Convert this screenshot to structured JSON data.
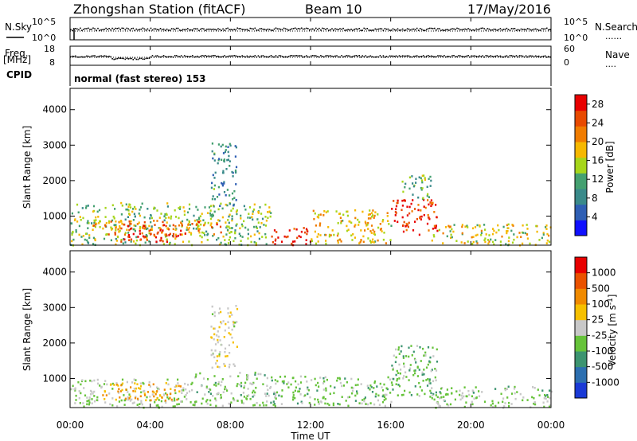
{
  "header": {
    "station": "Zhongshan Station (fitACF)",
    "beam": "Beam 10",
    "date": "17/May/2016"
  },
  "aux": {
    "nsky_label": "N.Sky",
    "nsearch_label": "N.Search",
    "freq_label": "Freq.",
    "freq_unit": "[MHz]",
    "nave_label": "Nave",
    "cpid_label": "CPID",
    "cpid_text": "normal (fast stereo) 153",
    "noise_ticks_left": [
      "10^5",
      "10^0"
    ],
    "noise_ticks_right": [
      "10^5",
      "10^0"
    ],
    "freq_ticks": [
      "18",
      "8"
    ],
    "nave_ticks": [
      "60",
      "0"
    ],
    "dotted_legend": "......",
    "dotted_legend_short": "...."
  },
  "xaxis": {
    "label": "Time UT",
    "ticks": [
      "00:00",
      "04:00",
      "08:00",
      "12:00",
      "16:00",
      "20:00",
      "00:00"
    ]
  },
  "chart_data": [
    {
      "type": "heatmap",
      "title": "",
      "quantity": "Power",
      "xlabel": "Time UT",
      "ylabel": "Slant Range [km]",
      "xlim_hours": [
        0,
        24
      ],
      "ylim_km": [
        180,
        4600
      ],
      "yticks": [
        "1000",
        "2000",
        "3000",
        "4000"
      ],
      "colorbar": {
        "label": "Power [dB]",
        "ticks": [
          "4",
          "8",
          "12",
          "16",
          "20",
          "24",
          "28"
        ],
        "range": [
          0,
          30
        ],
        "colors": [
          "#1010ff",
          "#2f5fb4",
          "#3a8a8a",
          "#44a070",
          "#a6d61a",
          "#f6b800",
          "#f07c00",
          "#e84a00",
          "#e80000"
        ]
      },
      "scatter_regions": [
        {
          "t": [
            0.0,
            10.0
          ],
          "r": [
            200,
            1400
          ],
          "level": 14
        },
        {
          "t": [
            1.0,
            7.5
          ],
          "r": [
            500,
            900
          ],
          "level": 22
        },
        {
          "t": [
            2.5,
            5.5
          ],
          "r": [
            300,
            800
          ],
          "level": 28
        },
        {
          "t": [
            7.0,
            8.3
          ],
          "r": [
            1300,
            3100
          ],
          "level": 9
        },
        {
          "t": [
            10.0,
            12.0
          ],
          "r": [
            200,
            700
          ],
          "level": 28
        },
        {
          "t": [
            12.0,
            16.0
          ],
          "r": [
            250,
            1200
          ],
          "level": 18
        },
        {
          "t": [
            16.0,
            18.3
          ],
          "r": [
            500,
            1500
          ],
          "level": 27
        },
        {
          "t": [
            16.5,
            18.0
          ],
          "r": [
            1500,
            2200
          ],
          "level": 12
        },
        {
          "t": [
            18.0,
            24.0
          ],
          "r": [
            200,
            800
          ],
          "level": 17
        }
      ]
    },
    {
      "type": "heatmap",
      "title": "",
      "quantity": "Velocity",
      "xlabel": "Time UT",
      "ylabel": "Slant Range [km]",
      "xlim_hours": [
        0,
        24
      ],
      "ylim_km": [
        180,
        4600
      ],
      "yticks": [
        "1000",
        "2000",
        "3000",
        "4000"
      ],
      "colorbar": {
        "label": "Velocity [m s^-1]",
        "ticks": [
          "1000",
          "500",
          "100",
          "25",
          "-25",
          "-100",
          "-500",
          "-1000"
        ],
        "range": [
          -1200,
          1200
        ],
        "colors": [
          "#1a3ad6",
          "#2c6fb0",
          "#3c9470",
          "#66c33a",
          "#c8c8c8",
          "#f6c000",
          "#f08a00",
          "#ea5200",
          "#e80000"
        ]
      },
      "scatter_regions": [
        {
          "t": [
            0.0,
            6.0
          ],
          "r": [
            200,
            1000
          ],
          "level": -150
        },
        {
          "t": [
            1.5,
            5.5
          ],
          "r": [
            400,
            900
          ],
          "level": 400
        },
        {
          "t": [
            6.0,
            10.0
          ],
          "r": [
            250,
            1200
          ],
          "level": -200
        },
        {
          "t": [
            7.0,
            8.3
          ],
          "r": [
            1300,
            3100
          ],
          "level": 60
        },
        {
          "t": [
            10.0,
            16.0
          ],
          "r": [
            250,
            1100
          ],
          "level": -250
        },
        {
          "t": [
            16.0,
            18.3
          ],
          "r": [
            500,
            2000
          ],
          "level": -300
        },
        {
          "t": [
            18.0,
            24.0
          ],
          "r": [
            200,
            800
          ],
          "level": -200
        }
      ]
    }
  ]
}
